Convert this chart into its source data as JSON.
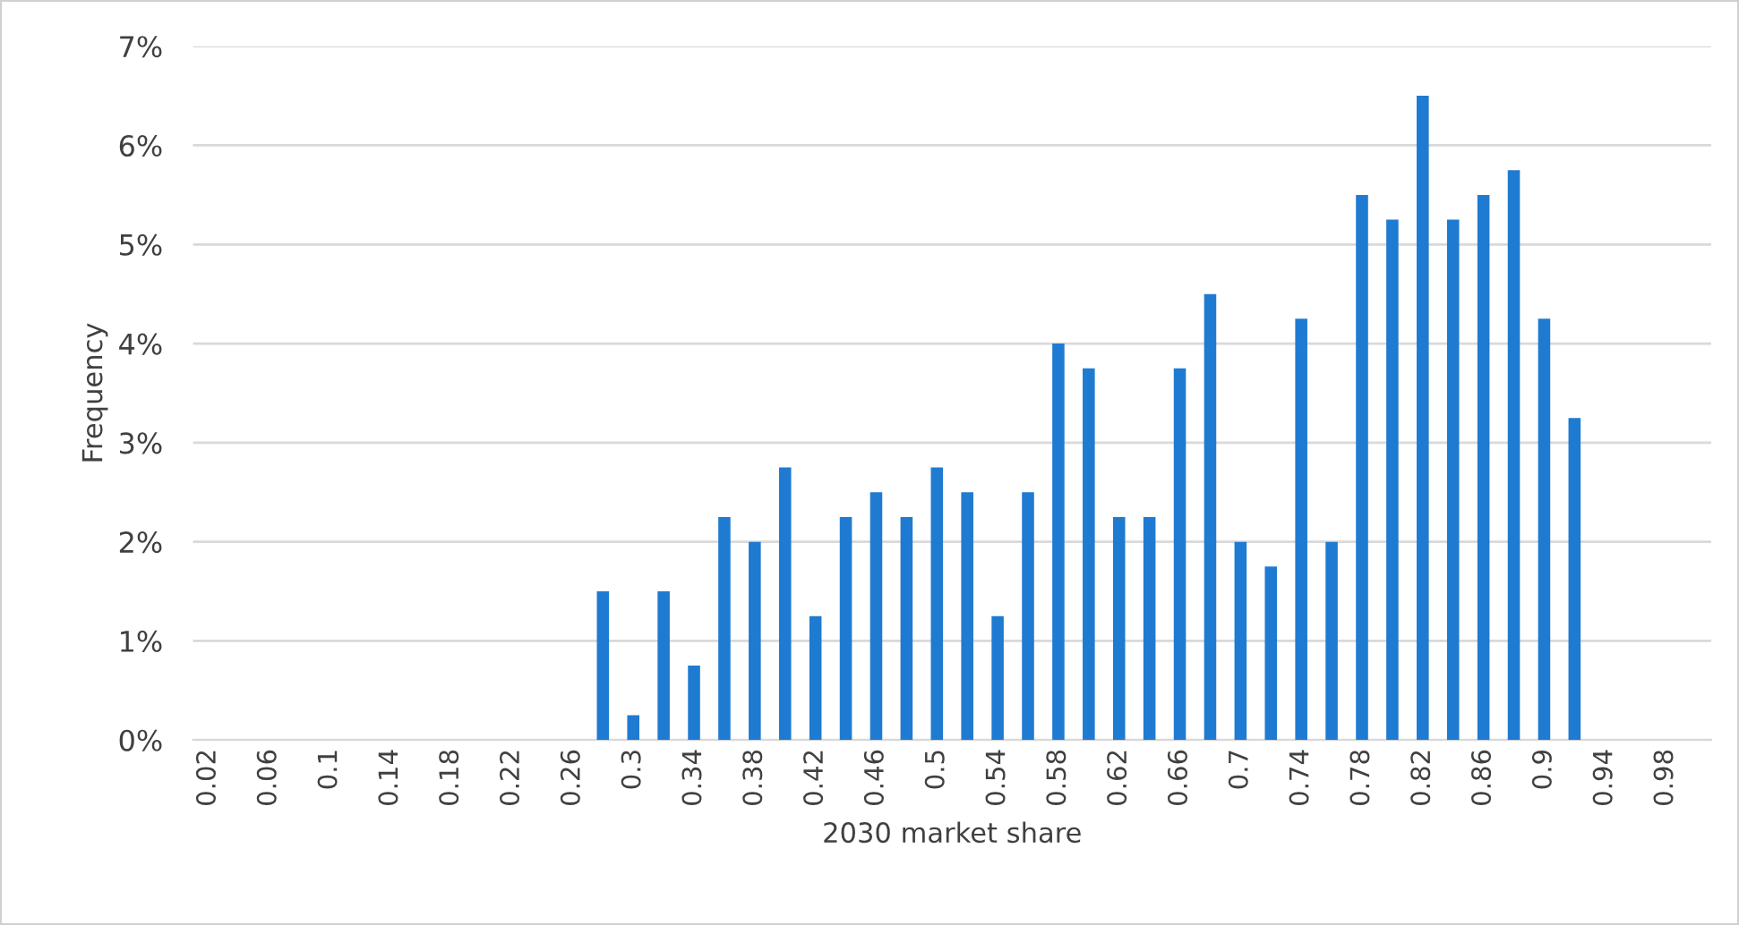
{
  "chart_data": {
    "type": "bar",
    "xlabel": "2030 market share",
    "ylabel": "Frequency",
    "categories": [
      "0.02",
      null,
      "0.06",
      null,
      "0.1",
      null,
      "0.14",
      null,
      "0.18",
      null,
      "0.22",
      null,
      "0.26",
      null,
      "0.3",
      null,
      "0.34",
      null,
      "0.38",
      null,
      "0.42",
      null,
      "0.46",
      null,
      "0.5",
      null,
      "0.54",
      null,
      "0.58",
      null,
      "0.62",
      null,
      "0.66",
      null,
      "0.7",
      null,
      "0.74",
      null,
      "0.78",
      null,
      "0.82",
      null,
      "0.86",
      null,
      "0.9",
      null,
      "0.94",
      null,
      "0.98",
      null
    ],
    "values": [
      0,
      0,
      0,
      0,
      0,
      0,
      0,
      0,
      0,
      0,
      0,
      0,
      0,
      1.5,
      0.25,
      1.5,
      0.75,
      2.25,
      2,
      2.75,
      1.25,
      2.25,
      2.5,
      2.25,
      2.75,
      2.5,
      1.25,
      2.5,
      4,
      3.75,
      2.25,
      2.25,
      3.75,
      4.5,
      2,
      1.75,
      4.25,
      2,
      5.5,
      5.25,
      6.5,
      5.25,
      5.5,
      5.75,
      4.25,
      3.25,
      0,
      0,
      0,
      0
    ],
    "color": "#1f7bd1",
    "ylim": [
      0,
      7
    ],
    "yticks": [
      {
        "value": 0,
        "label": "0%"
      },
      {
        "value": 1,
        "label": "1%"
      },
      {
        "value": 2,
        "label": "2%"
      },
      {
        "value": 3,
        "label": "3%"
      },
      {
        "value": 4,
        "label": "4%"
      },
      {
        "value": 5,
        "label": "5%"
      },
      {
        "value": 6,
        "label": "6%"
      },
      {
        "value": 7,
        "label": "7%"
      }
    ],
    "grid": "y",
    "legend": false
  }
}
